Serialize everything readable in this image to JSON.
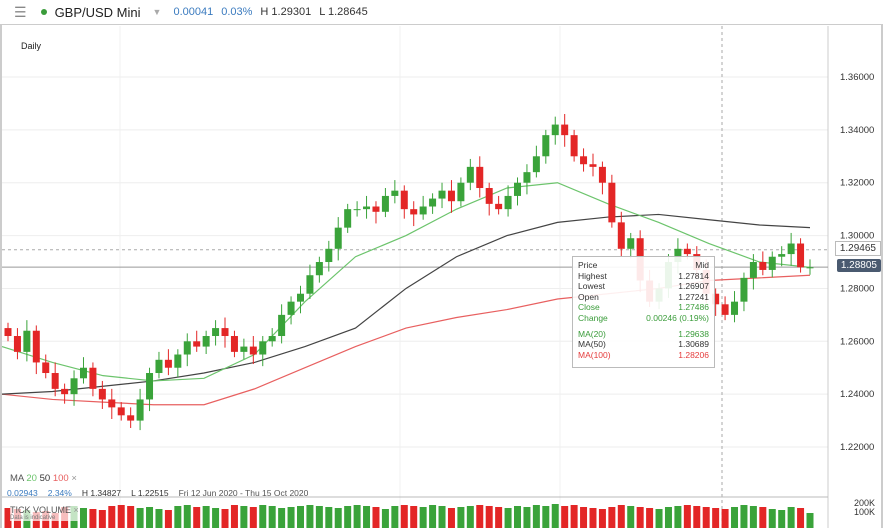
{
  "header": {
    "symbol": "GBP/USD Mini",
    "change": "0.00041",
    "change_pct": "0.03%",
    "high": "H 1.29301",
    "low": "L 1.28645",
    "status_color": "#3a9c3a"
  },
  "timeframe": "Daily",
  "tooltip": {
    "title": "Price",
    "mode": "Mid",
    "highest_label": "Highest",
    "highest": "1.27814",
    "lowest_label": "Lowest",
    "lowest": "1.26907",
    "open_label": "Open",
    "open": "1.27241",
    "close_label": "Close",
    "close": "1.27486",
    "change_label": "Change",
    "change": "0.00246 (0.19%)",
    "ma20_label": "MA(20)",
    "ma20": "1.29638",
    "ma50_label": "MA(50)",
    "ma50": "1.30689",
    "ma100_label": "MA(100)",
    "ma100": "1.28206"
  },
  "ma_legend": {
    "label": "MA",
    "p1": "20",
    "p2": "50",
    "p3": "100",
    "close": "×"
  },
  "stats": {
    "change": "0.02943",
    "pct": "2.34%",
    "high": "H 1.34827",
    "low": "L 1.22515",
    "range": "Fri 12 Jun 2020 - Thu 15 Oct 2020"
  },
  "volume": {
    "label": "TICK VOLUME",
    "close": "×",
    "note": "Data is indicative",
    "ticks": [
      "200K",
      "100K"
    ]
  },
  "price_marks": {
    "crosshair": "1.29465",
    "last": "1.28805"
  },
  "colors": {
    "up": "#3aa33a",
    "down": "#e32626",
    "ma20": "#6cc46c",
    "ma50": "#444444",
    "ma100": "#e86060"
  },
  "chart_data": {
    "type": "candlestick",
    "ylim": [
      1.21,
      1.37
    ],
    "yticks": [
      "1.36000",
      "1.34000",
      "1.32000",
      "1.30000",
      "1.28000",
      "1.26000",
      "1.24000",
      "1.22000"
    ],
    "closes": [
      1.262,
      1.256,
      1.264,
      1.252,
      1.248,
      1.242,
      1.24,
      1.246,
      1.25,
      1.242,
      1.238,
      1.235,
      1.232,
      1.23,
      1.238,
      1.248,
      1.253,
      1.25,
      1.255,
      1.26,
      1.258,
      1.262,
      1.265,
      1.262,
      1.256,
      1.258,
      1.255,
      1.26,
      1.262,
      1.27,
      1.275,
      1.278,
      1.285,
      1.29,
      1.295,
      1.303,
      1.31,
      1.31,
      1.311,
      1.309,
      1.315,
      1.317,
      1.31,
      1.308,
      1.311,
      1.314,
      1.317,
      1.313,
      1.32,
      1.326,
      1.318,
      1.312,
      1.31,
      1.315,
      1.32,
      1.324,
      1.33,
      1.338,
      1.342,
      1.338,
      1.33,
      1.327,
      1.326,
      1.32,
      1.305,
      1.295,
      1.299,
      1.283,
      1.275,
      1.28,
      1.29,
      1.295,
      1.293,
      1.287,
      1.278,
      1.274,
      1.27,
      1.275,
      1.284,
      1.29,
      1.287,
      1.292,
      1.293,
      1.297,
      1.288,
      1.288
    ],
    "ma20": [
      1.258,
      1.252,
      1.247,
      1.245,
      1.246,
      1.255,
      1.275,
      1.292,
      1.3,
      1.31,
      1.318,
      1.32,
      1.312,
      1.305,
      1.297,
      1.29,
      1.288
    ],
    "ma50": [
      1.24,
      1.241,
      1.243,
      1.245,
      1.248,
      1.252,
      1.258,
      1.265,
      1.28,
      1.292,
      1.3,
      1.305,
      1.307,
      1.308,
      1.306,
      1.304,
      1.303
    ],
    "ma100": [
      1.24,
      1.238,
      1.237,
      1.236,
      1.236,
      1.242,
      1.25,
      1.258,
      1.265,
      1.269,
      1.272,
      1.276,
      1.278,
      1.28,
      1.283,
      1.284,
      1.285
    ],
    "volumes_k": [
      160,
      150,
      140,
      120,
      130,
      110,
      170,
      180,
      160,
      150,
      140,
      180,
      190,
      180,
      160,
      170,
      150,
      140,
      180,
      190,
      170,
      180,
      160,
      150,
      190,
      180,
      170,
      190,
      180,
      160,
      170,
      180,
      190,
      180,
      170,
      160,
      180,
      190,
      180,
      170,
      150,
      180,
      190,
      180,
      170,
      190,
      180,
      160,
      170,
      180,
      190,
      180,
      170,
      160,
      180,
      170,
      190,
      180,
      200,
      180,
      190,
      170,
      160,
      150,
      170,
      190,
      180,
      170,
      160,
      150,
      170,
      180,
      190,
      180,
      170,
      160,
      150,
      170,
      190,
      180,
      170,
      150,
      140,
      170,
      160,
      110
    ]
  }
}
